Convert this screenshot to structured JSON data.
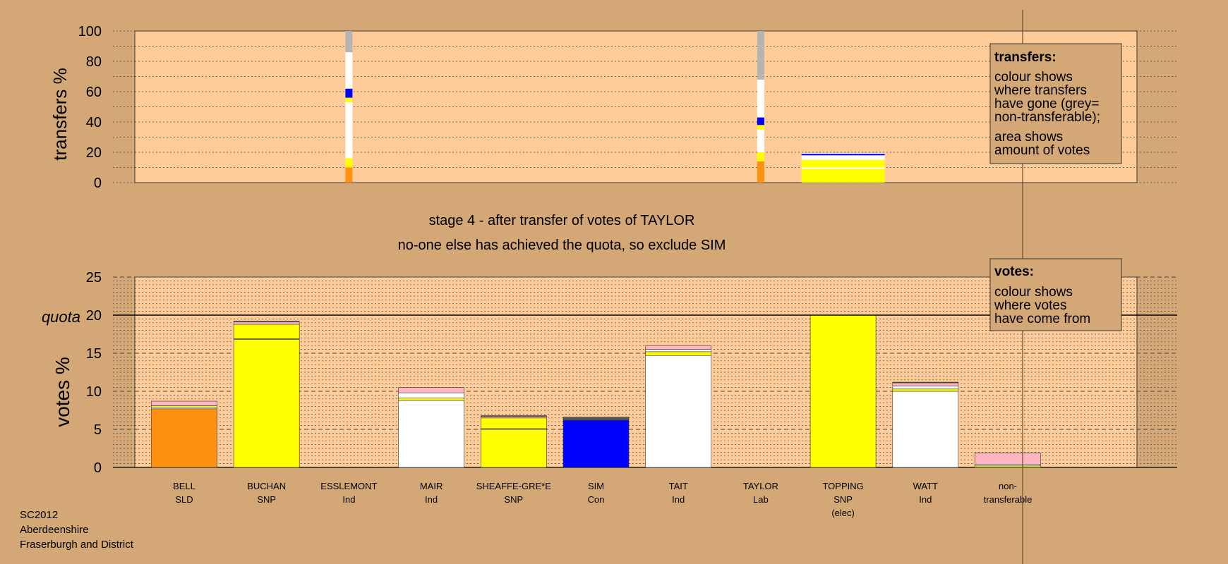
{
  "colors": {
    "background": "#d4a876",
    "plot_area": "#ffcc99",
    "orange": "#ff9010",
    "yellow": "#ffff00",
    "white": "#ffffff",
    "blue": "#0000ff",
    "pink": "#ffb6c1",
    "grey": "#b4b4b4",
    "dark": "#555555"
  },
  "footer": {
    "line1": "SC2012",
    "line2": "Aberdeenshire",
    "line3": "Fraserburgh and District"
  },
  "stage": {
    "line1": "stage 4 - after transfer of votes of TAYLOR",
    "line2": "no-one else has achieved the quota, so exclude SIM"
  },
  "legend_transfers": {
    "title": "transfers:",
    "lines": [
      "colour shows",
      "where transfers",
      "have gone (grey=",
      "non-transferable);"
    ],
    "lines2": [
      "area shows",
      "amount of votes"
    ]
  },
  "legend_votes": {
    "title": "votes:",
    "lines": [
      "colour shows",
      "where votes",
      "have come from"
    ]
  },
  "chart_data": [
    {
      "type": "bar",
      "chart": "transfers",
      "ylabel": "transfers %",
      "ylim": [
        0,
        100
      ],
      "yticks": [
        0,
        20,
        40,
        60,
        80,
        100
      ],
      "bars": [
        {
          "candidate": "ESSLEMONT",
          "thin": true,
          "segments": [
            {
              "color": "orange",
              "from": 0,
              "to": 10
            },
            {
              "color": "yellow",
              "from": 10,
              "to": 16
            },
            {
              "color": "white",
              "from": 16,
              "to": 53
            },
            {
              "color": "yellow",
              "from": 53,
              "to": 56
            },
            {
              "color": "blue",
              "from": 56,
              "to": 62
            },
            {
              "color": "white",
              "from": 62,
              "to": 86
            },
            {
              "color": "grey",
              "from": 86,
              "to": 100
            }
          ]
        },
        {
          "candidate": "TAYLOR",
          "thin": true,
          "segments": [
            {
              "color": "orange",
              "from": 0,
              "to": 14
            },
            {
              "color": "yellow",
              "from": 14,
              "to": 20
            },
            {
              "color": "white",
              "from": 20,
              "to": 35
            },
            {
              "color": "yellow",
              "from": 35,
              "to": 38
            },
            {
              "color": "blue",
              "from": 38,
              "to": 43
            },
            {
              "color": "white",
              "from": 43,
              "to": 68
            },
            {
              "color": "grey",
              "from": 68,
              "to": 100
            }
          ]
        },
        {
          "candidate": "TOPPING",
          "thin": false,
          "segments": [
            {
              "color": "yellow",
              "from": 0,
              "to": 9
            },
            {
              "color": "white",
              "from": 9,
              "to": 10
            },
            {
              "color": "yellow",
              "from": 10,
              "to": 15
            },
            {
              "color": "white",
              "from": 15,
              "to": 18
            },
            {
              "color": "blue",
              "from": 18,
              "to": 19
            },
            {
              "color": "white",
              "from": 19,
              "to": 19.5
            }
          ]
        }
      ]
    },
    {
      "type": "bar",
      "chart": "votes",
      "ylabel": "votes %",
      "ylim": [
        0,
        25
      ],
      "yticks": [
        0,
        5,
        10,
        15,
        20,
        25
      ],
      "quota": 20,
      "quota_label": "quota",
      "categories": [
        {
          "name": "BELL",
          "party": "SLD",
          "extra": ""
        },
        {
          "name": "BUCHAN",
          "party": "SNP",
          "extra": ""
        },
        {
          "name": "ESSLEMONT",
          "party": "Ind",
          "extra": ""
        },
        {
          "name": "MAIR",
          "party": "Ind",
          "extra": ""
        },
        {
          "name": "SHEAFFE-GRE*E",
          "party": "SNP",
          "extra": ""
        },
        {
          "name": "SIM",
          "party": "Con",
          "extra": ""
        },
        {
          "name": "TAIT",
          "party": "Ind",
          "extra": ""
        },
        {
          "name": "TAYLOR",
          "party": "Lab",
          "extra": ""
        },
        {
          "name": "TOPPING",
          "party": "SNP",
          "extra": "(elec)"
        },
        {
          "name": "WATT",
          "party": "Ind",
          "extra": ""
        },
        {
          "name": "non-",
          "party": "transferable",
          "extra": ""
        }
      ],
      "stacks": [
        [
          {
            "color": "orange",
            "value": 7.7
          },
          {
            "color": "white",
            "value": 0.2
          },
          {
            "color": "yellow",
            "value": 0.2
          },
          {
            "color": "pink",
            "value": 0.6
          }
        ],
        [
          {
            "color": "yellow",
            "value": 16.8
          },
          {
            "color": "white",
            "value": 0.1
          },
          {
            "color": "yellow",
            "value": 1.9
          },
          {
            "color": "pink",
            "value": 0.3
          },
          {
            "color": "dark",
            "value": 0.1
          }
        ],
        [],
        [
          {
            "color": "white",
            "value": 8.8
          },
          {
            "color": "yellow",
            "value": 0.3
          },
          {
            "color": "white",
            "value": 0.7
          },
          {
            "color": "pink",
            "value": 0.7
          }
        ],
        [
          {
            "color": "yellow",
            "value": 5.0
          },
          {
            "color": "white",
            "value": 0.1
          },
          {
            "color": "yellow",
            "value": 1.4
          },
          {
            "color": "pink",
            "value": 0.2
          },
          {
            "color": "dark",
            "value": 0.1
          }
        ],
        [
          {
            "color": "blue",
            "value": 6.2
          },
          {
            "color": "dark",
            "value": 0.4
          }
        ],
        [
          {
            "color": "white",
            "value": 14.7
          },
          {
            "color": "yellow",
            "value": 0.5
          },
          {
            "color": "white",
            "value": 0.3
          },
          {
            "color": "pink",
            "value": 0.5
          }
        ],
        [],
        [
          {
            "color": "yellow",
            "value": 20.0
          }
        ],
        [
          {
            "color": "white",
            "value": 10.0
          },
          {
            "color": "yellow",
            "value": 0.3
          },
          {
            "color": "white",
            "value": 0.4
          },
          {
            "color": "pink",
            "value": 0.4
          },
          {
            "color": "dark",
            "value": 0.1
          }
        ],
        [
          {
            "color": "yellow",
            "value": 0.2
          },
          {
            "color": "white",
            "value": 0.2
          },
          {
            "color": "pink",
            "value": 1.5
          }
        ]
      ]
    }
  ]
}
